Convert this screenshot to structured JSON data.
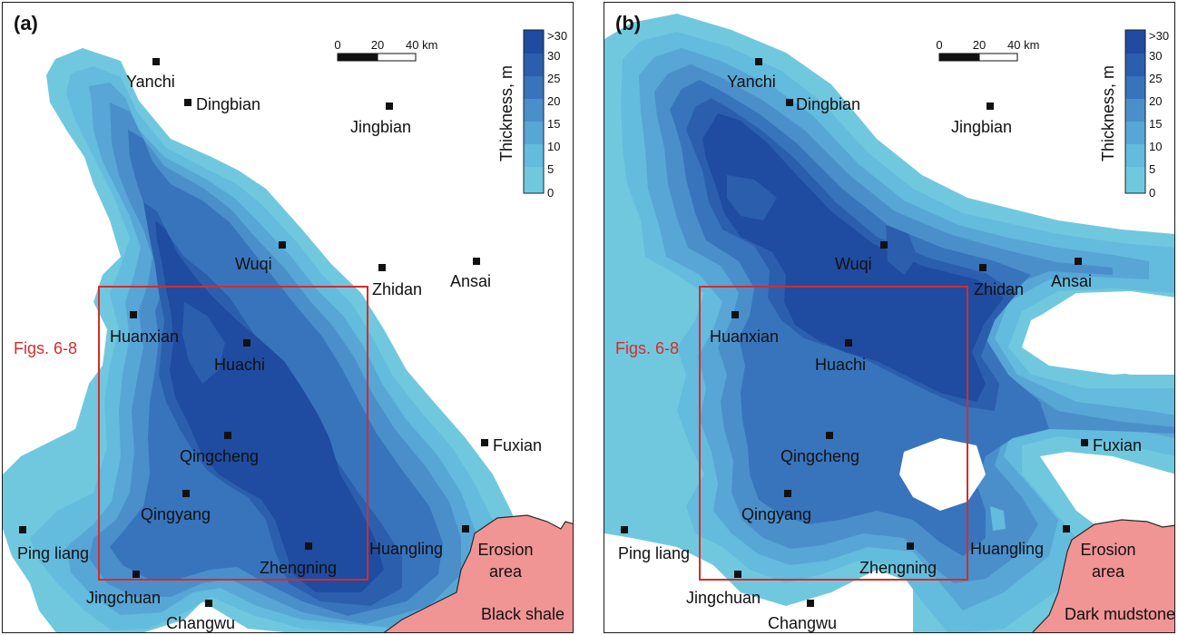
{
  "legend": {
    "title": "Thickness, m",
    "ticks": [
      ">30",
      "30",
      "25",
      "20",
      "15",
      "10",
      "5",
      "0"
    ],
    "colors": [
      "#1f4ba1",
      "#2b5fae",
      "#3874bc",
      "#4a8fca",
      "#57a6d5",
      "#63bbdd",
      "#70c8df"
    ]
  },
  "scale_bar": {
    "ticks": [
      "0",
      "20",
      "40 km"
    ]
  },
  "figs_label": "Figs. 6-8",
  "erosion_label": [
    "Erosion",
    "area"
  ],
  "colors": {
    "erosion": "#f19494",
    "study_box": "#d62b2b",
    "city_marker": "#111111"
  },
  "panels": [
    {
      "label": "(a)",
      "lithology": "Black shale",
      "cities": [
        {
          "name": "Yanchi"
        },
        {
          "name": "Dingbian"
        },
        {
          "name": "Jingbian"
        },
        {
          "name": "Wuqi"
        },
        {
          "name": "Zhidan"
        },
        {
          "name": "Ansai"
        },
        {
          "name": "Huanxian"
        },
        {
          "name": "Huachi"
        },
        {
          "name": "Qingcheng"
        },
        {
          "name": "Fuxian"
        },
        {
          "name": "Qingyang"
        },
        {
          "name": "Ping liang"
        },
        {
          "name": "Huangling"
        },
        {
          "name": "Zhengning"
        },
        {
          "name": "Jingchuan"
        },
        {
          "name": "Changwu"
        }
      ]
    },
    {
      "label": "(b)",
      "lithology": "Dark mudstone",
      "cities": [
        {
          "name": "Yanchi"
        },
        {
          "name": "Dingbian"
        },
        {
          "name": "Jingbian"
        },
        {
          "name": "Wuqi"
        },
        {
          "name": "Zhidan"
        },
        {
          "name": "Ansai"
        },
        {
          "name": "Huanxian"
        },
        {
          "name": "Huachi"
        },
        {
          "name": "Qingcheng"
        },
        {
          "name": "Fuxian"
        },
        {
          "name": "Qingyang"
        },
        {
          "name": "Ping liang"
        },
        {
          "name": "Huangling"
        },
        {
          "name": "Zhengning"
        },
        {
          "name": "Jingchuan"
        },
        {
          "name": "Changwu"
        }
      ]
    }
  ]
}
